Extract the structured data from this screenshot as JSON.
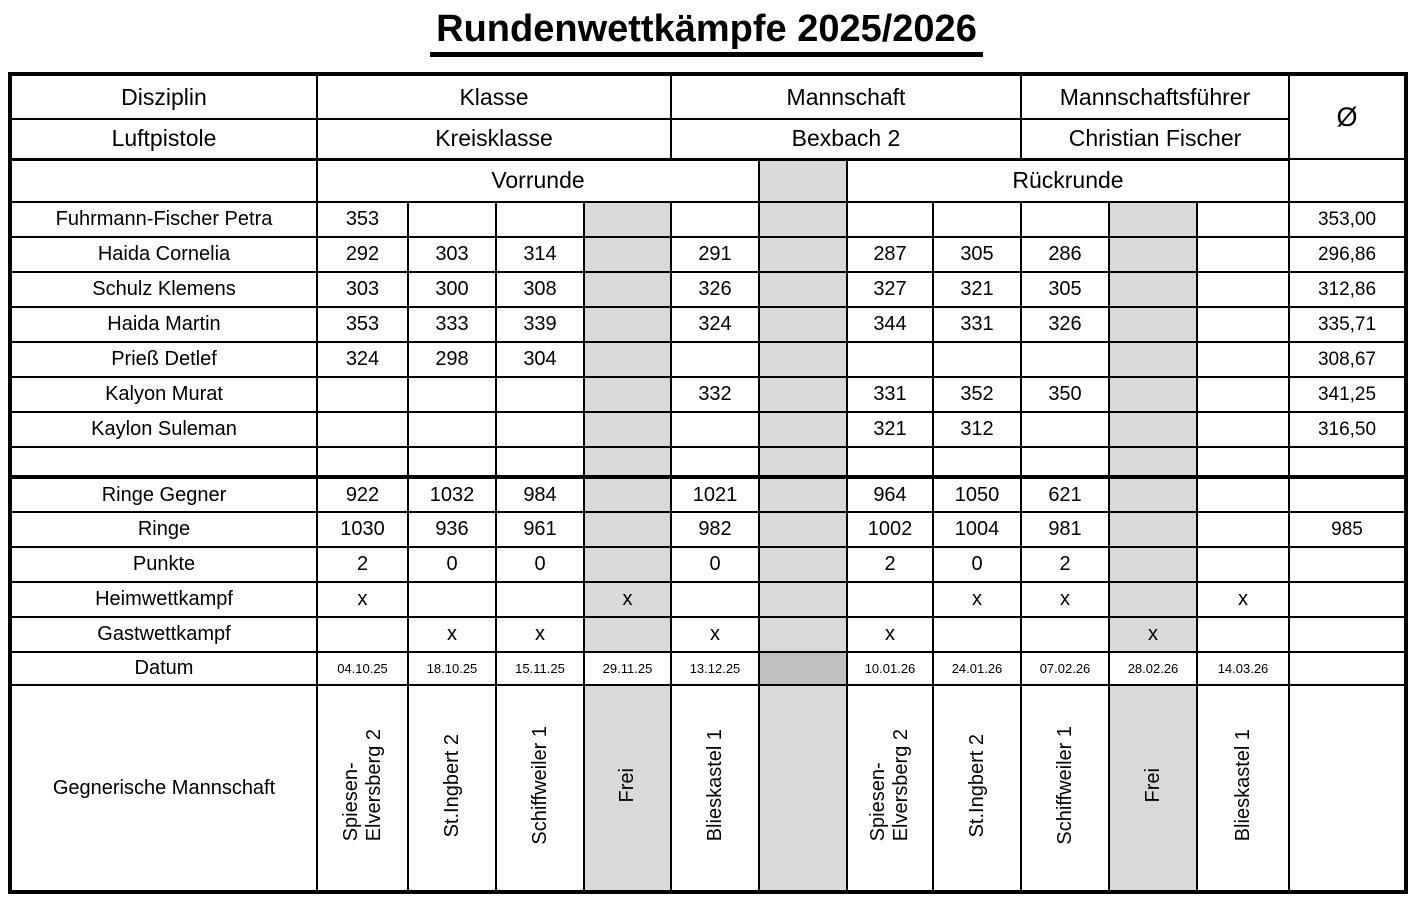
{
  "title": "Rundenwettkämpfe 2025/2026",
  "colors": {
    "grid_line": "#000000",
    "shade": "#d9d9d9",
    "shade_dark": "#c0c0c0"
  },
  "header": {
    "disziplin_label": "Disziplin",
    "disziplin_value": "Luftpistole",
    "klasse_label": "Klasse",
    "klasse_value": "Kreisklasse",
    "mannschaft_label": "Mannschaft",
    "mannschaft_value": "Bexbach 2",
    "fuehrer_label": "Mannschaftsführer",
    "fuehrer_value": "Christian Fischer",
    "avg_symbol": "Ø"
  },
  "rounds": {
    "vorrunde": "Vorrunde",
    "rueckrunde": "Rückrunde"
  },
  "players": [
    {
      "name": "Fuhrmann-Fischer Petra",
      "scores": [
        {
          "v": "353",
          "b": true
        },
        null,
        null,
        null,
        null,
        null,
        null,
        null,
        null,
        null
      ],
      "avg": "353,00"
    },
    {
      "name": "Haida Cornelia",
      "scores": [
        {
          "v": "292",
          "b": false
        },
        {
          "v": "303",
          "b": true
        },
        {
          "v": "314",
          "b": true
        },
        null,
        {
          "v": "291",
          "b": false
        },
        {
          "v": "287",
          "b": false
        },
        {
          "v": "305",
          "b": false
        },
        {
          "v": "286",
          "b": false
        },
        null,
        null
      ],
      "avg": "296,86"
    },
    {
      "name": "Schulz Klemens",
      "scores": [
        {
          "v": "303",
          "b": false
        },
        {
          "v": "300",
          "b": true
        },
        {
          "v": "308",
          "b": true
        },
        null,
        {
          "v": "326",
          "b": true
        },
        {
          "v": "327",
          "b": true
        },
        {
          "v": "321",
          "b": true
        },
        {
          "v": "305",
          "b": true
        },
        null,
        null
      ],
      "avg": "312,86"
    },
    {
      "name": "Haida Martin",
      "scores": [
        {
          "v": "353",
          "b": true
        },
        {
          "v": "333",
          "b": true
        },
        {
          "v": "339",
          "b": true
        },
        null,
        {
          "v": "324",
          "b": true
        },
        {
          "v": "344",
          "b": true
        },
        {
          "v": "331",
          "b": true
        },
        {
          "v": "326",
          "b": true
        },
        null,
        null
      ],
      "avg": "335,71"
    },
    {
      "name": "Prieß Detlef",
      "scores": [
        {
          "v": "324",
          "b": true
        },
        {
          "v": "298",
          "b": false
        },
        {
          "v": "304",
          "b": false
        },
        null,
        null,
        null,
        null,
        null,
        null,
        null
      ],
      "avg": "308,67"
    },
    {
      "name": "Kalyon Murat",
      "scores": [
        null,
        null,
        null,
        null,
        {
          "v": "332",
          "b": true
        },
        {
          "v": "331",
          "b": true
        },
        {
          "v": "352",
          "b": true
        },
        {
          "v": "350",
          "b": true
        },
        null,
        null
      ],
      "avg": "341,25"
    },
    {
      "name": "Kaylon Suleman",
      "scores": [
        null,
        null,
        null,
        null,
        null,
        {
          "v": "321",
          "b": false
        },
        {
          "v": "312",
          "b": false
        },
        null,
        null,
        null
      ],
      "avg": "316,50"
    }
  ],
  "stats": [
    {
      "label": "Ringe Gegner",
      "values": [
        "922",
        "1032",
        "984",
        "",
        "1021",
        "964",
        "1050",
        "621",
        "",
        ""
      ],
      "avg": ""
    },
    {
      "label": "Ringe",
      "values": [
        "1030",
        "936",
        "961",
        "",
        "982",
        "1002",
        "1004",
        "981",
        "",
        ""
      ],
      "avg": "985"
    },
    {
      "label": "Punkte",
      "values": [
        "2",
        "0",
        "0",
        "",
        "0",
        "2",
        "0",
        "2",
        "",
        ""
      ],
      "avg": ""
    }
  ],
  "matches": [
    {
      "label": "Heimwettkampf",
      "values": [
        "x",
        "",
        "",
        "x",
        "",
        "",
        "x",
        "x",
        "",
        "x"
      ]
    },
    {
      "label": "Gastwettkampf",
      "values": [
        "",
        "x",
        "x",
        "",
        "x",
        "x",
        "",
        "",
        "x",
        ""
      ]
    }
  ],
  "datum": {
    "label": "Datum",
    "values": [
      "04.10.25",
      "18.10.25",
      "15.11.25",
      "29.11.25",
      "13.12.25",
      "10.01.26",
      "24.01.26",
      "07.02.26",
      "28.02.26",
      "14.03.26"
    ]
  },
  "opponents": {
    "label": "Gegnerische Mannschaft",
    "values": [
      "Spiesen-\nElversberg 2",
      "St.Ingbert 2",
      "Schiffweiler 1",
      "Frei",
      "Blieskastel 1",
      "Spiesen-\nElversberg 2",
      "St.Ingbert 2",
      "Schiffweiler 1",
      "Frei",
      "Blieskastel 1"
    ]
  }
}
